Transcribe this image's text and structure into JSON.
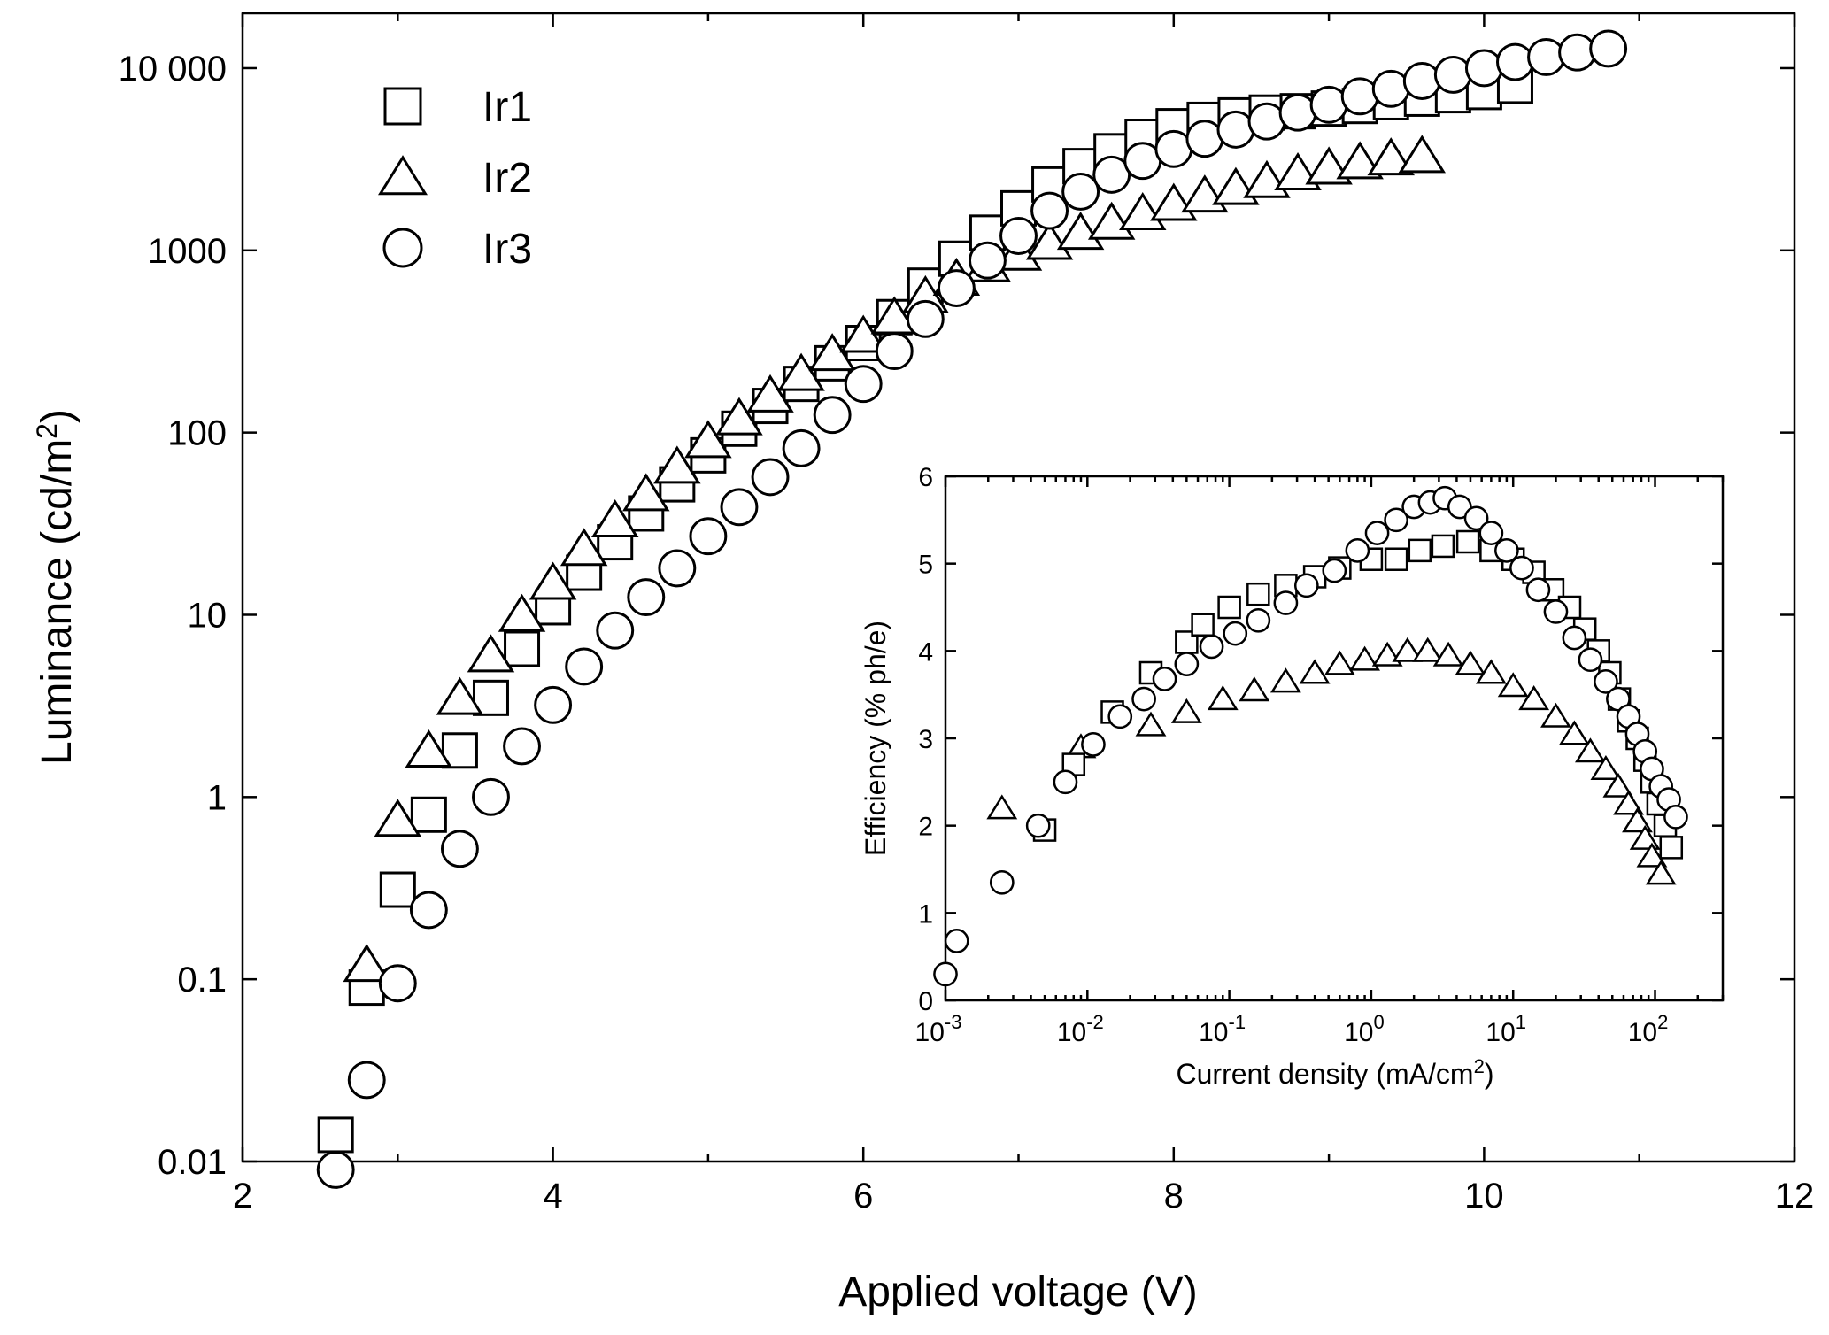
{
  "chart_data": [
    {
      "type": "scatter",
      "name": "main",
      "xlabel": "Applied voltage (V)",
      "ylabel": "Luminance (cd/m2)",
      "ylabel_parts": {
        "base": "Luminance (cd/m",
        "sup": "2",
        "tail": ")"
      },
      "xscale": "linear",
      "yscale": "log",
      "xlim": [
        2,
        12
      ],
      "ylim": [
        0.01,
        20000
      ],
      "xticks": [
        2,
        4,
        6,
        8,
        10,
        12
      ],
      "xtick_labels": [
        "2",
        "4",
        "6",
        "8",
        "10",
        "12"
      ],
      "yticks": [
        0.01,
        0.1,
        1,
        10,
        100,
        1000,
        10000
      ],
      "ytick_labels": [
        "0.01",
        "0.1",
        "1",
        "10",
        "100",
        "1000",
        "10 000"
      ],
      "legend_position": "top-left",
      "series": [
        {
          "name": "Ir1",
          "marker": "square",
          "x": [
            2.6,
            2.8,
            3.0,
            3.2,
            3.4,
            3.6,
            3.8,
            4.0,
            4.2,
            4.4,
            4.6,
            4.8,
            5.0,
            5.2,
            5.4,
            5.6,
            5.8,
            6.0,
            6.2,
            6.4,
            6.6,
            6.8,
            7.0,
            7.2,
            7.4,
            7.6,
            7.8,
            8.0,
            8.2,
            8.4,
            8.6,
            8.8,
            9.0,
            9.2,
            9.4,
            9.6,
            9.8,
            10.0,
            10.2
          ],
          "y": [
            0.014,
            0.09,
            0.31,
            0.8,
            1.8,
            3.5,
            6.5,
            11,
            17,
            25,
            36,
            52,
            75,
            105,
            140,
            185,
            240,
            310,
            430,
            640,
            900,
            1250,
            1700,
            2300,
            2900,
            3500,
            4200,
            4800,
            5200,
            5500,
            5700,
            5800,
            6000,
            6200,
            6500,
            6800,
            7100,
            7400,
            8000
          ]
        },
        {
          "name": "Ir2",
          "marker": "triangle",
          "x": [
            2.8,
            3.0,
            3.2,
            3.4,
            3.6,
            3.8,
            4.0,
            4.2,
            4.4,
            4.6,
            4.8,
            5.0,
            5.2,
            5.4,
            5.6,
            5.8,
            6.0,
            6.2,
            6.4,
            6.6,
            6.8,
            7.0,
            7.2,
            7.4,
            7.6,
            7.8,
            8.0,
            8.2,
            8.4,
            8.6,
            8.8,
            9.0,
            9.2,
            9.4,
            9.6
          ],
          "y": [
            0.12,
            0.75,
            1.8,
            3.5,
            6.0,
            10,
            15,
            23,
            33,
            46,
            65,
            90,
            120,
            160,
            210,
            270,
            340,
            430,
            560,
            700,
            830,
            960,
            1100,
            1250,
            1420,
            1600,
            1800,
            2000,
            2200,
            2400,
            2650,
            2850,
            3050,
            3200,
            3300
          ]
        },
        {
          "name": "Ir3",
          "marker": "circle",
          "x": [
            2.6,
            2.8,
            3.0,
            3.2,
            3.4,
            3.6,
            3.8,
            4.0,
            4.2,
            4.4,
            4.6,
            4.8,
            5.0,
            5.2,
            5.4,
            5.6,
            5.8,
            6.0,
            6.2,
            6.4,
            6.6,
            6.8,
            7.0,
            7.2,
            7.4,
            7.6,
            7.8,
            8.0,
            8.2,
            8.4,
            8.6,
            8.8,
            9.0,
            9.2,
            9.4,
            9.6,
            9.8,
            10.0,
            10.2,
            10.4,
            10.6,
            10.8
          ],
          "y": [
            0.009,
            0.028,
            0.095,
            0.24,
            0.52,
            1.0,
            1.9,
            3.2,
            5.2,
            8.2,
            12.5,
            18,
            27,
            39,
            57,
            82,
            125,
            185,
            280,
            420,
            620,
            880,
            1200,
            1650,
            2100,
            2600,
            3100,
            3600,
            4100,
            4600,
            5100,
            5700,
            6300,
            7000,
            7700,
            8500,
            9200,
            10000,
            10800,
            11500,
            12200,
            12800
          ]
        }
      ]
    },
    {
      "type": "scatter",
      "name": "inset",
      "xlabel": "Current density (mA/cm2)",
      "xlabel_parts": {
        "base": "Current density (mA/cm",
        "sup": "2",
        "tail": ")"
      },
      "ylabel": "Efficiency (% ph/e)",
      "xscale": "log",
      "yscale": "linear",
      "xlim": [
        0.001,
        300
      ],
      "ylim": [
        0,
        6
      ],
      "xticks": [
        0.001,
        0.01,
        0.1,
        1,
        10,
        100
      ],
      "xtick_labels": [
        {
          "base": "10",
          "exp": "-3"
        },
        {
          "base": "10",
          "exp": "-2"
        },
        {
          "base": "10",
          "exp": "-1"
        },
        {
          "base": "10",
          "exp": "0"
        },
        {
          "base": "10",
          "exp": "1"
        },
        {
          "base": "10",
          "exp": "2"
        }
      ],
      "yticks": [
        0,
        1,
        2,
        3,
        4,
        5,
        6
      ],
      "ytick_labels": [
        "0",
        "1",
        "2",
        "3",
        "4",
        "5",
        "6"
      ],
      "series": [
        {
          "name": "Ir1",
          "marker": "square",
          "x": [
            0.005,
            0.008,
            0.015,
            0.028,
            0.05,
            0.065,
            0.1,
            0.16,
            0.25,
            0.4,
            0.6,
            1.0,
            1.5,
            2.2,
            3.2,
            4.8,
            7.0,
            10,
            14,
            19,
            25,
            32,
            40,
            48,
            56,
            65,
            75,
            85,
            95,
            105,
            118,
            130
          ],
          "y": [
            1.95,
            2.7,
            3.3,
            3.75,
            4.1,
            4.3,
            4.5,
            4.65,
            4.75,
            4.85,
            4.95,
            5.05,
            5.05,
            5.15,
            5.2,
            5.25,
            5.15,
            5.05,
            4.9,
            4.7,
            4.5,
            4.25,
            4.0,
            3.75,
            3.45,
            3.2,
            3.0,
            2.75,
            2.5,
            2.25,
            2.0,
            1.75
          ]
        },
        {
          "name": "Ir2",
          "marker": "triangle",
          "x": [
            0.0025,
            0.009,
            0.028,
            0.05,
            0.09,
            0.15,
            0.25,
            0.4,
            0.6,
            0.9,
            1.3,
            1.8,
            2.5,
            3.5,
            5,
            7,
            10,
            14,
            20,
            27,
            35,
            45,
            55,
            65,
            75,
            85,
            95,
            110
          ],
          "y": [
            2.2,
            2.9,
            3.15,
            3.3,
            3.45,
            3.55,
            3.65,
            3.75,
            3.85,
            3.9,
            3.95,
            4.0,
            4.0,
            3.95,
            3.85,
            3.75,
            3.6,
            3.45,
            3.25,
            3.05,
            2.85,
            2.65,
            2.45,
            2.25,
            2.05,
            1.85,
            1.65,
            1.45
          ]
        },
        {
          "name": "Ir3",
          "marker": "circle",
          "x": [
            0.001,
            0.0012,
            0.0025,
            0.0045,
            0.007,
            0.011,
            0.017,
            0.025,
            0.035,
            0.05,
            0.075,
            0.11,
            0.16,
            0.25,
            0.35,
            0.55,
            0.8,
            1.1,
            1.5,
            2.0,
            2.6,
            3.3,
            4.2,
            5.5,
            7.0,
            9.0,
            11.5,
            15,
            20,
            27,
            35,
            45,
            55,
            65,
            75,
            85,
            95,
            110,
            125,
            140
          ],
          "y": [
            0.3,
            0.68,
            1.35,
            2.0,
            2.5,
            2.93,
            3.25,
            3.45,
            3.68,
            3.85,
            4.05,
            4.2,
            4.35,
            4.55,
            4.75,
            4.92,
            5.15,
            5.35,
            5.5,
            5.65,
            5.7,
            5.75,
            5.65,
            5.52,
            5.35,
            5.15,
            4.95,
            4.7,
            4.45,
            4.15,
            3.9,
            3.65,
            3.45,
            3.25,
            3.05,
            2.85,
            2.65,
            2.45,
            2.3,
            2.1
          ]
        }
      ]
    }
  ]
}
